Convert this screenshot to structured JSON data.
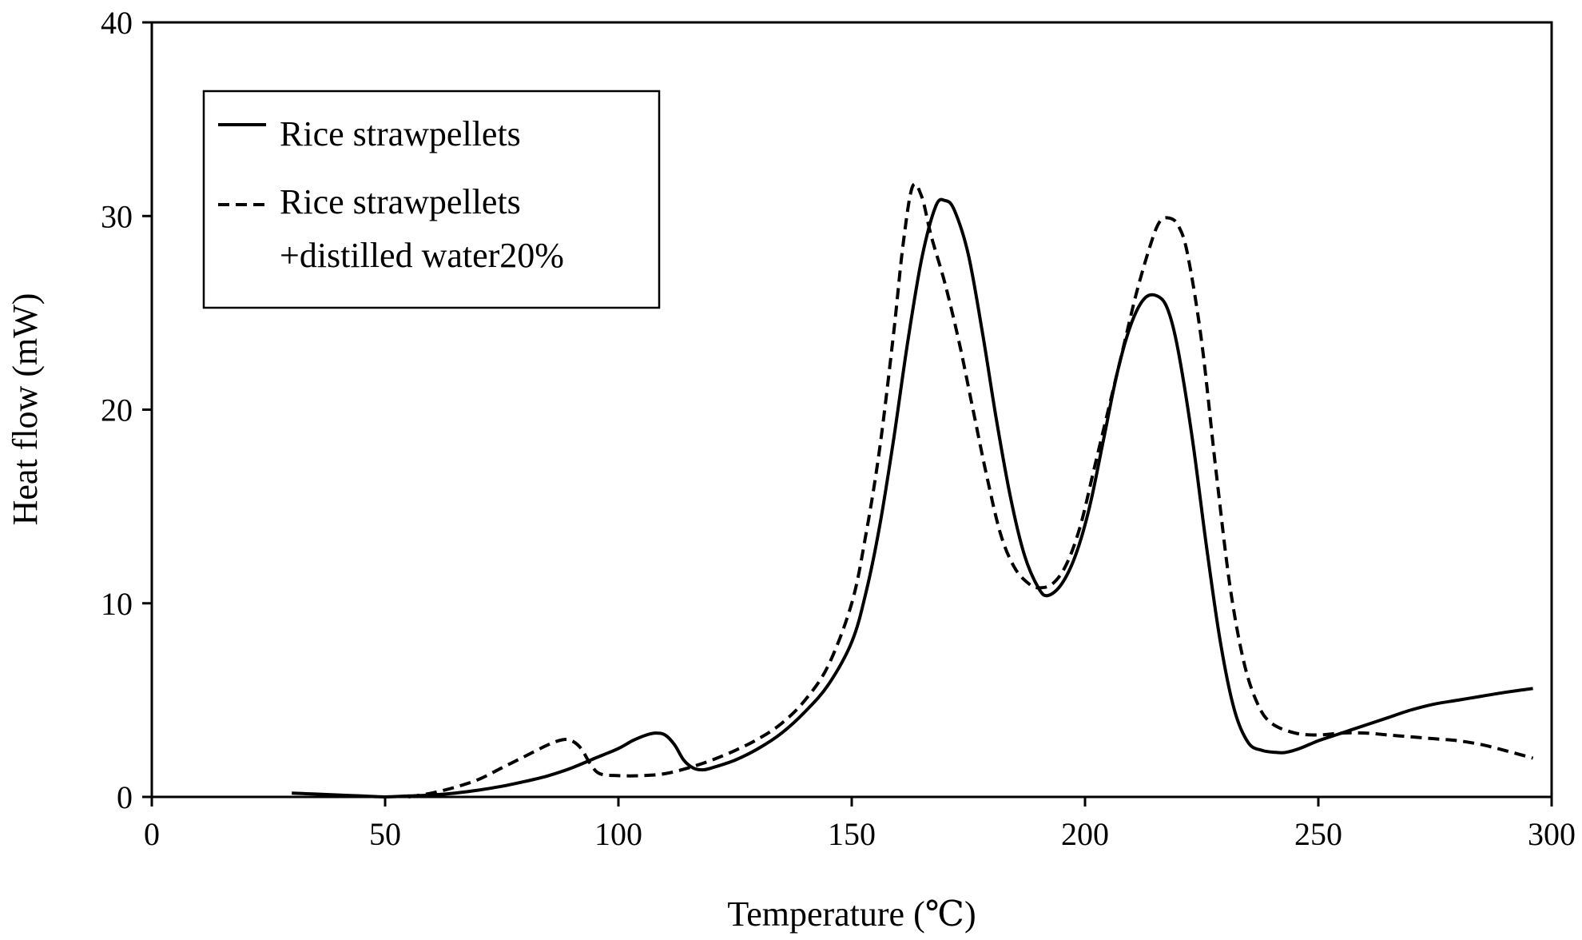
{
  "chart_data": {
    "type": "line",
    "title": "",
    "xlabel": "Temperature (℃)",
    "ylabel": "Heat flow (mW)",
    "xlim": [
      0,
      300
    ],
    "ylim": [
      0,
      40
    ],
    "xticks": [
      0,
      50,
      100,
      150,
      200,
      250,
      300
    ],
    "yticks": [
      0,
      10,
      20,
      30,
      40
    ],
    "xtick_labels": [
      "0",
      "50",
      "100",
      "150",
      "200",
      "250",
      "300"
    ],
    "ytick_labels": [
      "0",
      "10",
      "20",
      "30",
      "40"
    ],
    "grid": false,
    "legend_position": "top-left",
    "series": [
      {
        "name": "Rice strawpellets",
        "legend_lines": [
          "Rice strawpellets"
        ],
        "style": "solid",
        "color": "#000000",
        "x": [
          30,
          35,
          40,
          45,
          50,
          55,
          60,
          65,
          70,
          75,
          80,
          85,
          90,
          95,
          100,
          103,
          106,
          108,
          110,
          112,
          114,
          116,
          118,
          120,
          125,
          130,
          135,
          140,
          145,
          150,
          153,
          156,
          159,
          162,
          165,
          168,
          170,
          172,
          175,
          178,
          181,
          184,
          187,
          190,
          192,
          195,
          198,
          201,
          204,
          207,
          210,
          213,
          216,
          218,
          220,
          223,
          226,
          229,
          232,
          235,
          238,
          241,
          243,
          246,
          250,
          255,
          260,
          265,
          270,
          275,
          280,
          285,
          290,
          296
        ],
        "y": [
          0.2,
          0.15,
          0.1,
          0.05,
          0.0,
          0.05,
          0.1,
          0.2,
          0.35,
          0.55,
          0.8,
          1.1,
          1.5,
          2.0,
          2.5,
          2.9,
          3.2,
          3.3,
          3.2,
          2.7,
          1.9,
          1.5,
          1.4,
          1.5,
          1.9,
          2.5,
          3.3,
          4.4,
          5.8,
          8.0,
          10.5,
          14.0,
          18.5,
          23.5,
          27.8,
          30.5,
          30.8,
          30.3,
          28.0,
          24.0,
          19.5,
          15.5,
          12.5,
          10.8,
          10.4,
          11.0,
          12.5,
          15.0,
          18.5,
          22.0,
          24.5,
          25.8,
          25.8,
          25.0,
          23.0,
          18.5,
          13.0,
          8.0,
          4.5,
          2.8,
          2.4,
          2.3,
          2.3,
          2.5,
          2.9,
          3.3,
          3.7,
          4.1,
          4.5,
          4.8,
          5.0,
          5.2,
          5.4,
          5.6
        ]
      },
      {
        "name": "Rice strawpellets +distilled water20%",
        "legend_lines": [
          "Rice strawpellets",
          "+distilled water20%"
        ],
        "style": "dashed",
        "color": "#000000",
        "x": [
          55,
          60,
          65,
          70,
          75,
          80,
          85,
          88,
          90,
          92,
          94,
          96,
          100,
          105,
          110,
          115,
          120,
          125,
          130,
          135,
          140,
          145,
          150,
          153,
          156,
          159,
          161,
          163,
          165,
          167,
          170,
          173,
          176,
          179,
          182,
          185,
          188,
          190,
          193,
          196,
          199,
          202,
          205,
          208,
          211,
          214,
          216,
          218,
          220,
          222,
          225,
          228,
          231,
          234,
          237,
          240,
          245,
          250,
          255,
          260,
          265,
          270,
          275,
          280,
          285,
          290,
          296
        ],
        "y": [
          0.0,
          0.2,
          0.5,
          0.9,
          1.5,
          2.1,
          2.7,
          2.95,
          2.9,
          2.5,
          1.7,
          1.2,
          1.1,
          1.1,
          1.2,
          1.5,
          1.9,
          2.4,
          3.0,
          3.8,
          5.0,
          6.8,
          10.0,
          13.5,
          18.0,
          24.0,
          28.5,
          31.5,
          31.0,
          29.0,
          26.5,
          23.5,
          20.0,
          16.5,
          13.5,
          11.8,
          11.0,
          10.8,
          11.0,
          12.0,
          14.0,
          17.0,
          20.0,
          23.0,
          26.0,
          28.5,
          29.7,
          29.9,
          29.5,
          28.0,
          23.5,
          17.0,
          11.0,
          7.0,
          4.8,
          3.8,
          3.3,
          3.2,
          3.3,
          3.3,
          3.2,
          3.1,
          3.0,
          2.9,
          2.7,
          2.4,
          2.0
        ]
      }
    ]
  }
}
